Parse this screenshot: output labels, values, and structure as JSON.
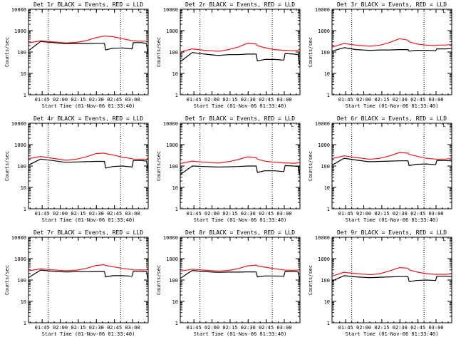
{
  "colors": {
    "events": "#000000",
    "lld": "#e8191c",
    "axis": "#000000",
    "background": "#ffffff"
  },
  "chart_data": [
    {
      "type": "line",
      "title": "Det 1r BLACK = Events, RED = LLD",
      "ylabel": "Counts/sec",
      "xlabel": "Start Time (01-Nov-06 01:33:40)",
      "yscale": "log",
      "ylim": [
        1,
        10000
      ],
      "xlim": [
        "01:33:40",
        "03:13:00"
      ],
      "x_ticks": [
        "01:45",
        "02:00",
        "02:15",
        "02:30",
        "02:45",
        "03:00"
      ],
      "y_ticks": [
        "1",
        "10",
        "100",
        "1000",
        "10000"
      ],
      "vlines": [
        "01:50:00",
        "02:50:00"
      ],
      "corner_mark": "└",
      "x_minutes": [
        0,
        10,
        20,
        30,
        33,
        40,
        48,
        56,
        63,
        64,
        70,
        78,
        86,
        87,
        94,
        98,
        99
      ],
      "series": [
        {
          "name": "Events",
          "values": [
            115,
            310,
            280,
            245,
            245,
            250,
            250,
            255,
            255,
            125,
            150,
            155,
            140,
            275,
            275,
            250,
            80
          ]
        },
        {
          "name": "LLD",
          "values": [
            270,
            330,
            300,
            270,
            270,
            285,
            340,
            470,
            560,
            560,
            520,
            420,
            340,
            330,
            320,
            320,
            330
          ]
        }
      ]
    },
    {
      "type": "line",
      "title": "Det 2r BLACK = Events, RED = LLD",
      "ylabel": "Counts/sec",
      "xlabel": "Start Time (01-Nov-06 01:33:40)",
      "yscale": "log",
      "ylim": [
        1,
        10000
      ],
      "xlim": [
        "01:33:40",
        "03:13:00"
      ],
      "x_ticks": [
        "01:45",
        "02:00",
        "02:15",
        "02:30",
        "02:45",
        "03:00"
      ],
      "y_ticks": [
        "1",
        "10",
        "100",
        "1000",
        "10000"
      ],
      "vlines": [
        "01:50:00",
        "02:50:00"
      ],
      "corner_mark": "└",
      "x_minutes": [
        0,
        10,
        20,
        30,
        33,
        40,
        48,
        56,
        63,
        64,
        70,
        78,
        86,
        87,
        94,
        98,
        99
      ],
      "series": [
        {
          "name": "Events",
          "values": [
            35,
            95,
            80,
            70,
            70,
            75,
            75,
            80,
            80,
            38,
            45,
            45,
            42,
            85,
            80,
            75,
            25
          ]
        },
        {
          "name": "LLD",
          "values": [
            100,
            140,
            120,
            110,
            110,
            130,
            170,
            260,
            240,
            200,
            160,
            130,
            120,
            120,
            115,
            120,
            140
          ]
        }
      ]
    },
    {
      "type": "line",
      "title": "Det 3r BLACK = Events, RED = LLD",
      "ylabel": "Counts/sec",
      "xlabel": "Start Time (01-Nov-06 01:33:40)",
      "yscale": "log",
      "ylim": [
        1,
        10000
      ],
      "xlim": [
        "01:33:40",
        "03:13:00"
      ],
      "x_ticks": [
        "01:45",
        "02:00",
        "02:15",
        "02:30",
        "02:45",
        "03:00"
      ],
      "y_ticks": [
        "1",
        "10",
        "100",
        "1000",
        "10000"
      ],
      "vlines": [
        "01:50:00",
        "02:50:00"
      ],
      "corner_mark": "└",
      "x_minutes": [
        0,
        10,
        20,
        30,
        33,
        40,
        48,
        56,
        63,
        64,
        70,
        78,
        86,
        87,
        94,
        98,
        99
      ],
      "series": [
        {
          "name": "Events",
          "values": [
            110,
            160,
            130,
            120,
            120,
            125,
            125,
            130,
            130,
            110,
            120,
            120,
            115,
            140,
            140,
            145,
            140
          ]
        },
        {
          "name": "LLD",
          "values": [
            170,
            250,
            210,
            190,
            190,
            210,
            280,
            420,
            360,
            300,
            240,
            210,
            200,
            210,
            210,
            220,
            230
          ]
        }
      ]
    },
    {
      "type": "line",
      "title": "Det 4r BLACK = Events, RED = LLD",
      "ylabel": "Counts/sec",
      "xlabel": "Start Time (01-Nov-06 01:33:40)",
      "yscale": "log",
      "ylim": [
        1,
        10000
      ],
      "xlim": [
        "01:33:40",
        "03:13:00"
      ],
      "x_ticks": [
        "01:45",
        "02:00",
        "02:15",
        "02:30",
        "02:45",
        "03:00"
      ],
      "y_ticks": [
        "1",
        "10",
        "100",
        "1000",
        "10000"
      ],
      "vlines": [
        "01:50:00",
        "02:50:00"
      ],
      "corner_mark": "└",
      "x_minutes": [
        0,
        10,
        20,
        30,
        33,
        40,
        48,
        56,
        63,
        64,
        70,
        78,
        86,
        87,
        94,
        98,
        99
      ],
      "series": [
        {
          "name": "Events",
          "values": [
            110,
            210,
            180,
            150,
            150,
            155,
            160,
            165,
            165,
            80,
            95,
            100,
            90,
            180,
            180,
            170,
            70
          ]
        },
        {
          "name": "LLD",
          "values": [
            220,
            280,
            230,
            190,
            190,
            210,
            270,
            380,
            400,
            380,
            330,
            260,
            220,
            210,
            205,
            210,
            230
          ]
        }
      ]
    },
    {
      "type": "line",
      "title": "Det 5r BLACK = Events, RED = LLD",
      "ylabel": "Counts/sec",
      "xlabel": "Start Time (01-Nov-06 01:33:40)",
      "yscale": "log",
      "ylim": [
        1,
        10000
      ],
      "xlim": [
        "01:33:40",
        "03:13:00"
      ],
      "x_ticks": [
        "01:45",
        "02:00",
        "02:15",
        "02:30",
        "02:45",
        "03:00"
      ],
      "y_ticks": [
        "1",
        "10",
        "100",
        "1000",
        "10000"
      ],
      "vlines": [
        "01:50:00",
        "02:50:00"
      ],
      "corner_mark": "└",
      "x_minutes": [
        0,
        10,
        20,
        30,
        33,
        40,
        48,
        56,
        63,
        64,
        70,
        78,
        86,
        87,
        94,
        98,
        99
      ],
      "series": [
        {
          "name": "Events",
          "values": [
            40,
            100,
            95,
            90,
            90,
            92,
            95,
            100,
            100,
            50,
            60,
            60,
            55,
            105,
            100,
            95,
            40
          ]
        },
        {
          "name": "LLD",
          "values": [
            130,
            170,
            150,
            140,
            140,
            160,
            200,
            270,
            250,
            210,
            170,
            150,
            140,
            140,
            135,
            140,
            150
          ]
        }
      ]
    },
    {
      "type": "line",
      "title": "Det 6r BLACK = Events, RED = LLD",
      "ylabel": "Counts/sec",
      "xlabel": "Start Time (01-Nov-06 01:33:40)",
      "yscale": "log",
      "ylim": [
        1,
        10000
      ],
      "xlim": [
        "01:33:40",
        "03:13:00"
      ],
      "x_ticks": [
        "01:45",
        "02:00",
        "02:15",
        "02:30",
        "02:45",
        "03:00"
      ],
      "y_ticks": [
        "1",
        "10",
        "100",
        "1000",
        "10000"
      ],
      "vlines": [
        "01:50:00",
        "02:50:00"
      ],
      "corner_mark": "└",
      "x_minutes": [
        0,
        10,
        20,
        30,
        33,
        40,
        48,
        56,
        63,
        64,
        70,
        78,
        86,
        87,
        94,
        98,
        99
      ],
      "series": [
        {
          "name": "Events",
          "values": [
            110,
            230,
            190,
            160,
            160,
            165,
            170,
            175,
            175,
            105,
            120,
            125,
            115,
            180,
            180,
            175,
            170
          ]
        },
        {
          "name": "LLD",
          "values": [
            220,
            300,
            250,
            210,
            210,
            230,
            300,
            430,
            400,
            350,
            290,
            230,
            210,
            205,
            210,
            220,
            260
          ]
        }
      ]
    },
    {
      "type": "line",
      "title": "Det 7r BLACK = Events, RED = LLD",
      "ylabel": "Counts/sec",
      "xlabel": "Start Time (01-Nov-06 01:33:40)",
      "yscale": "log",
      "ylim": [
        1,
        10000
      ],
      "xlim": [
        "01:33:40",
        "03:13:00"
      ],
      "x_ticks": [
        "01:45",
        "02:00",
        "02:15",
        "02:30",
        "02:45",
        "03:00"
      ],
      "y_ticks": [
        "1",
        "10",
        "100",
        "1000",
        "10000"
      ],
      "vlines": [
        "01:50:00",
        "02:50:00"
      ],
      "corner_mark": "└",
      "x_minutes": [
        0,
        10,
        20,
        30,
        33,
        40,
        48,
        56,
        63,
        64,
        70,
        78,
        86,
        87,
        94,
        98,
        99
      ],
      "series": [
        {
          "name": "Events",
          "values": [
            130,
            290,
            260,
            240,
            240,
            245,
            245,
            250,
            250,
            140,
            160,
            160,
            150,
            255,
            255,
            250,
            110
          ]
        },
        {
          "name": "LLD",
          "values": [
            270,
            330,
            300,
            275,
            275,
            290,
            350,
            480,
            520,
            480,
            420,
            350,
            310,
            300,
            295,
            300,
            340
          ]
        }
      ]
    },
    {
      "type": "line",
      "title": "Det 8r BLACK = Events, RED = LLD",
      "ylabel": "Counts/sec",
      "xlabel": "Start Time (01-Nov-06 01:33:40)",
      "yscale": "log",
      "ylim": [
        1,
        10000
      ],
      "xlim": [
        "01:33:40",
        "03:13:00"
      ],
      "x_ticks": [
        "01:45",
        "02:00",
        "02:15",
        "02:30",
        "02:45",
        "03:00"
      ],
      "y_ticks": [
        "1",
        "10",
        "100",
        "1000",
        "10000"
      ],
      "vlines": [
        "01:50:00",
        "02:50:00"
      ],
      "corner_mark": "└",
      "x_minutes": [
        0,
        10,
        20,
        30,
        33,
        40,
        48,
        56,
        63,
        64,
        70,
        78,
        86,
        87,
        94,
        98,
        99
      ],
      "series": [
        {
          "name": "Events",
          "values": [
            120,
            280,
            250,
            230,
            230,
            235,
            235,
            240,
            240,
            140,
            155,
            155,
            150,
            250,
            245,
            240,
            100
          ]
        },
        {
          "name": "LLD",
          "values": [
            260,
            320,
            290,
            265,
            265,
            280,
            340,
            460,
            500,
            460,
            400,
            340,
            300,
            290,
            285,
            290,
            320
          ]
        }
      ]
    },
    {
      "type": "line",
      "title": "Det 9r BLACK = Events, RED = LLD",
      "ylabel": "Counts/sec",
      "xlabel": "Start Time (01-Nov-06 01:33:40)",
      "yscale": "log",
      "ylim": [
        1,
        10000
      ],
      "xlim": [
        "01:33:40",
        "03:13:00"
      ],
      "x_ticks": [
        "01:45",
        "02:00",
        "02:15",
        "02:30",
        "02:45",
        "03:00"
      ],
      "y_ticks": [
        "1",
        "10",
        "100",
        "1000",
        "10000"
      ],
      "vlines": [
        "01:50:00",
        "02:50:00"
      ],
      "corner_mark": "└",
      "x_minutes": [
        0,
        10,
        20,
        30,
        33,
        40,
        48,
        56,
        63,
        64,
        70,
        78,
        86,
        87,
        94,
        98,
        99
      ],
      "series": [
        {
          "name": "Events",
          "values": [
            90,
            160,
            140,
            130,
            130,
            135,
            140,
            145,
            145,
            85,
            95,
            100,
            95,
            150,
            150,
            145,
            140
          ]
        },
        {
          "name": "LLD",
          "values": [
            150,
            230,
            200,
            180,
            180,
            200,
            270,
            380,
            360,
            300,
            240,
            200,
            185,
            185,
            185,
            190,
            200
          ]
        }
      ]
    }
  ]
}
